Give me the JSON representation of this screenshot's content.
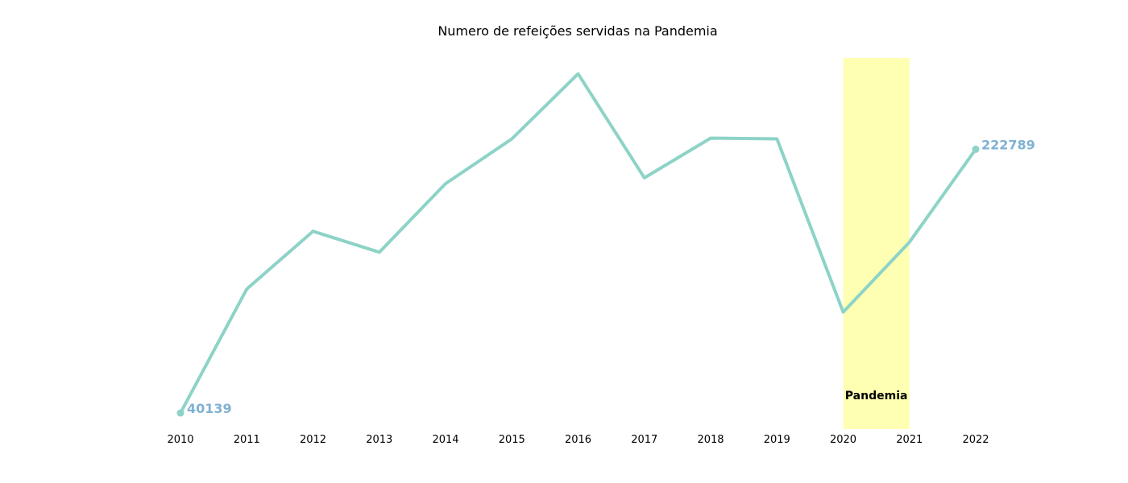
{
  "chart_data": {
    "type": "line",
    "title": "Numero de refeições servidas na Pandemia",
    "xlabel": "",
    "ylabel": "",
    "x": [
      2010,
      2011,
      2012,
      2013,
      2014,
      2015,
      2016,
      2017,
      2018,
      2019,
      2020,
      2021,
      2022
    ],
    "series": [
      {
        "values": [
          40139,
          126000,
          166000,
          151500,
          199000,
          230000,
          275000,
          203000,
          230500,
          230000,
          110000,
          158500,
          222789
        ]
      }
    ],
    "ylim": [
      29000,
      286000
    ],
    "xlim": [
      2010,
      2022
    ],
    "grid": false,
    "legend": "none",
    "highlight_band": {
      "from": 2020,
      "to": 2021,
      "label": "Pandemia"
    },
    "end_labels": {
      "first": "40139",
      "last": "222789"
    },
    "colors": {
      "line": "#8dd3c7",
      "band": "#ffffb3",
      "end_label": "#80b1d3"
    }
  }
}
